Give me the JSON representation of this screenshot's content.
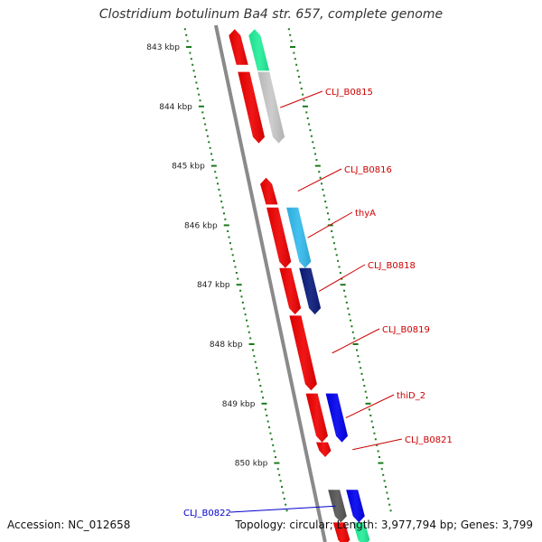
{
  "header": {
    "title": "Clostridium botulinum Ba4 str. 657, complete genome"
  },
  "footer": {
    "accession": "Accession: NC_012658",
    "summary": "Topology: circular; Length: 3,977,794 bp; Genes: 3,799"
  },
  "colors": {
    "backbone": "#8a8a8a",
    "tick": "#1a7a1a",
    "gene_red": "#ee0000",
    "gene_label_red": "#cc0000",
    "gene_label_blue": "#0000cc"
  },
  "ruler": [
    {
      "pos_kbp": 843,
      "label": "843 kbp"
    },
    {
      "pos_kbp": 844,
      "label": "844 kbp"
    },
    {
      "pos_kbp": 845,
      "label": "845 kbp"
    },
    {
      "pos_kbp": 846,
      "label": "846 kbp"
    },
    {
      "pos_kbp": 847,
      "label": "847 kbp"
    },
    {
      "pos_kbp": 848,
      "label": "848 kbp"
    },
    {
      "pos_kbp": 849,
      "label": "849 kbp"
    },
    {
      "pos_kbp": 850,
      "label": "850 kbp"
    }
  ],
  "genes": [
    {
      "label": "",
      "color": "#ee0000",
      "start_kbp": 842.7,
      "end_kbp": 843.3,
      "strand": "reverse"
    },
    {
      "label": "",
      "color": "#22ee99",
      "start_kbp": 842.7,
      "end_kbp": 843.4,
      "strand": "reverse"
    },
    {
      "label": "CLJ_B0815",
      "color": "#ee0000",
      "start_kbp": 843.42,
      "end_kbp": 844.62,
      "strand": "forward"
    },
    {
      "label": "",
      "color": "#c8c8c8",
      "start_kbp": 843.42,
      "end_kbp": 844.62,
      "strand": "forward"
    },
    {
      "label": "CLJ_B0816",
      "color": "#ee0000",
      "start_kbp": 845.2,
      "end_kbp": 845.65,
      "strand": "reverse"
    },
    {
      "label": "thyA",
      "color": "#ee0000",
      "start_kbp": 845.7,
      "end_kbp": 846.72,
      "strand": "forward"
    },
    {
      "label": "",
      "color": "#33bbee",
      "start_kbp": 845.7,
      "end_kbp": 846.72,
      "strand": "forward"
    },
    {
      "label": "CLJ_B0818",
      "color": "#ee0000",
      "start_kbp": 846.72,
      "end_kbp": 847.5,
      "strand": "forward"
    },
    {
      "label": "",
      "color": "#0a1a7a",
      "start_kbp": 846.72,
      "end_kbp": 847.5,
      "strand": "forward"
    },
    {
      "label": "CLJ_B0819",
      "color": "#ee0000",
      "start_kbp": 847.52,
      "end_kbp": 848.78,
      "strand": "forward"
    },
    {
      "label": "thiD_2",
      "color": "#ee0000",
      "start_kbp": 848.83,
      "end_kbp": 849.65,
      "strand": "forward"
    },
    {
      "label": "",
      "color": "#0000ee",
      "start_kbp": 848.83,
      "end_kbp": 849.65,
      "strand": "forward"
    },
    {
      "label": "CLJ_B0821",
      "color": "#ee0000",
      "start_kbp": 849.65,
      "end_kbp": 849.9,
      "strand": "forward"
    },
    {
      "label": "CLJ_B0822",
      "color": "#555555",
      "start_kbp": 850.45,
      "end_kbp": 851.0,
      "strand": "forward"
    },
    {
      "label": "",
      "color": "#0000ee",
      "start_kbp": 850.45,
      "end_kbp": 851.0,
      "strand": "forward"
    },
    {
      "label": "",
      "color": "#ee0000",
      "start_kbp": 851.0,
      "end_kbp": 851.4,
      "strand": "forward"
    },
    {
      "label": "",
      "color": "#22ee99",
      "start_kbp": 851.0,
      "end_kbp": 851.4,
      "strand": "forward"
    }
  ]
}
